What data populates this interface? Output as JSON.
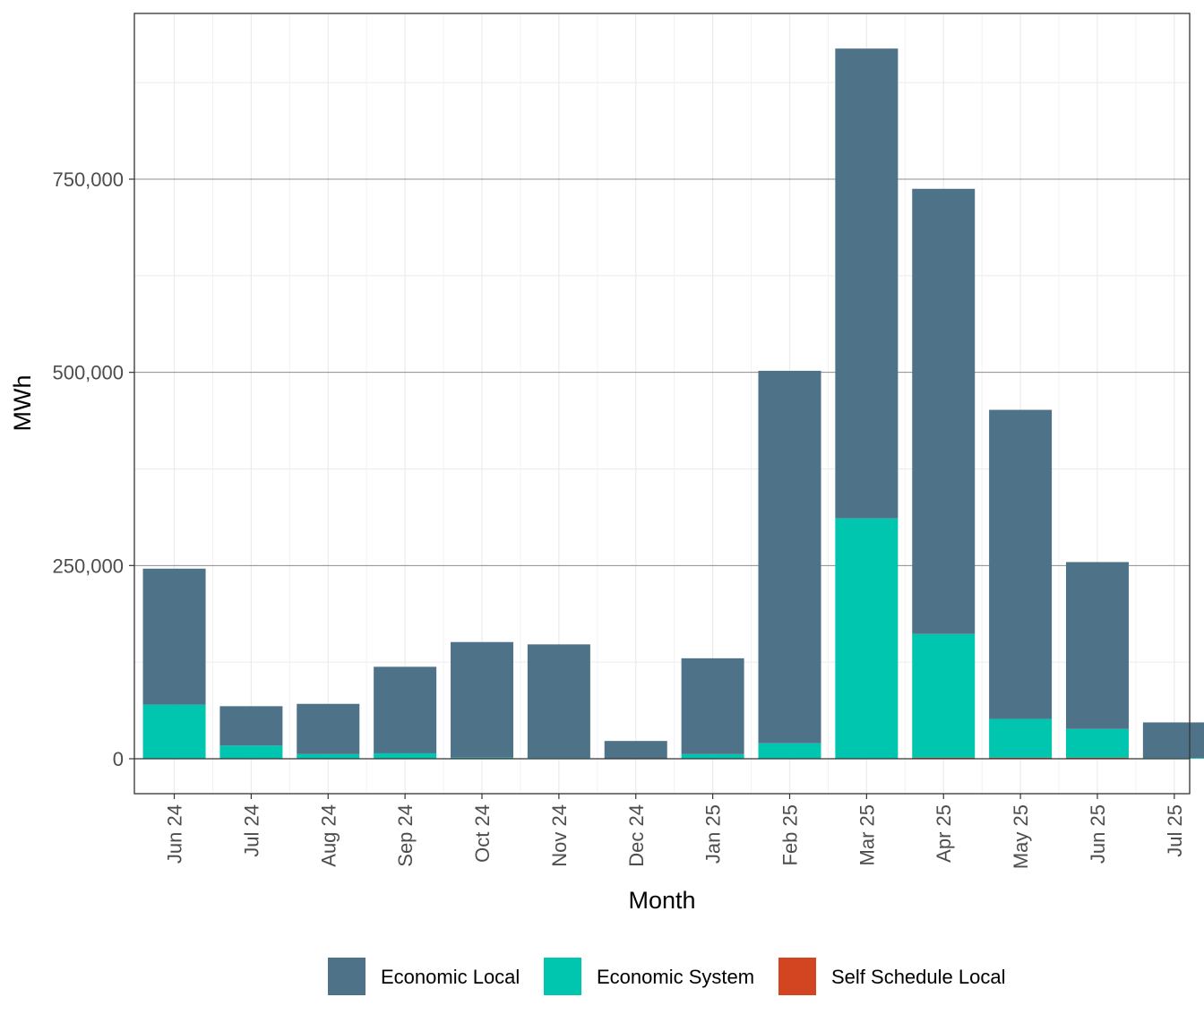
{
  "chart_data": {
    "type": "bar",
    "stacked": true,
    "xlabel": "Month",
    "ylabel": "MWh",
    "categories": [
      "Jun 24",
      "Jul 24",
      "Aug 24",
      "Sep 24",
      "Oct 24",
      "Nov 24",
      "Dec 24",
      "Jan 25",
      "Feb 25",
      "Mar 25",
      "Apr 25",
      "May 25",
      "Jun 25",
      "Jul 25"
    ],
    "ylim": [
      -45000,
      960000
    ],
    "yticks": [
      0,
      250000,
      500000,
      750000
    ],
    "ytick_labels": [
      "0",
      "250,000",
      "500,000",
      "750,000"
    ],
    "grid": true,
    "legend_position": "bottom",
    "series": [
      {
        "name": "Self Schedule Local",
        "color": "#d24520",
        "values": [
          0,
          0,
          0,
          0,
          0,
          0,
          0,
          0,
          0,
          0,
          1500,
          1500,
          1500,
          0
        ]
      },
      {
        "name": "Economic System",
        "color": "#00c6b0",
        "values": [
          70000,
          17000,
          6000,
          7000,
          1500,
          1000,
          500,
          6000,
          20000,
          311000,
          160000,
          50000,
          37000,
          1000
        ]
      },
      {
        "name": "Economic Local",
        "color": "#4e7389",
        "values": [
          176000,
          51000,
          65000,
          112000,
          149500,
          147000,
          22500,
          124000,
          482000,
          608000,
          576000,
          400000,
          216000,
          46000
        ]
      }
    ],
    "legend_order": [
      "Economic Local",
      "Economic System",
      "Self Schedule Local"
    ]
  }
}
